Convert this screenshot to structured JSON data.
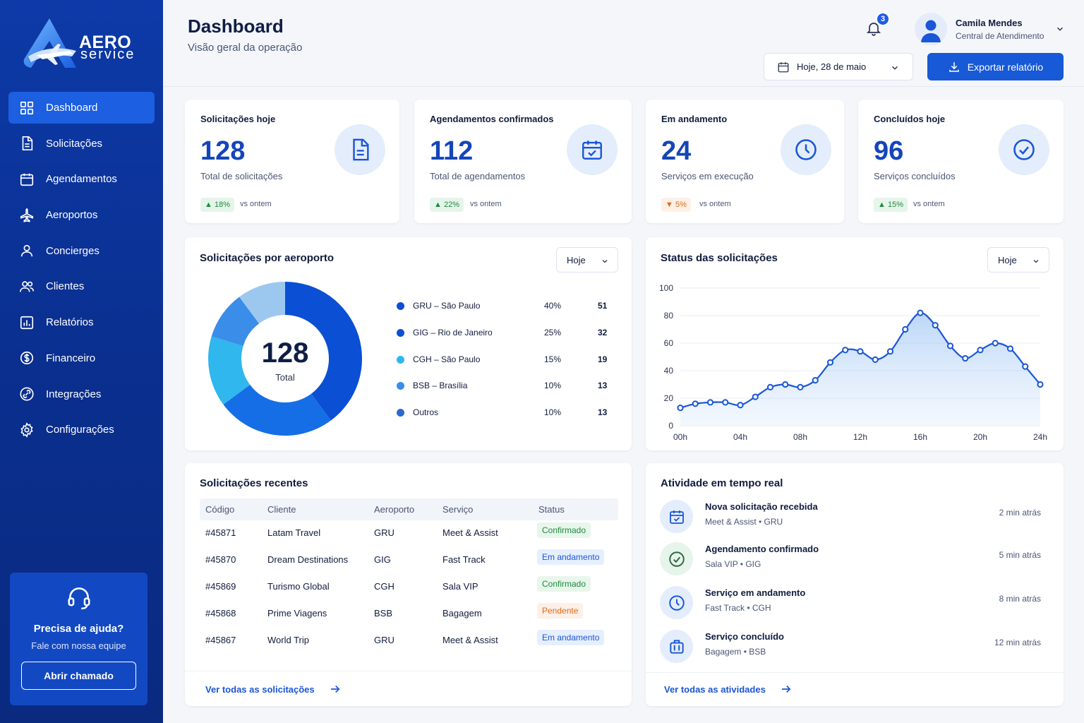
{
  "brand": {
    "name_line1": "AERO",
    "name_line2": "service"
  },
  "sidebar": {
    "items": [
      {
        "label": "Dashboard",
        "icon": "grid-icon",
        "active": true
      },
      {
        "label": "Solicitações",
        "icon": "document-icon"
      },
      {
        "label": "Agendamentos",
        "icon": "calendar-icon"
      },
      {
        "label": "Aeroportos",
        "icon": "airplane-icon"
      },
      {
        "label": "Concierges",
        "icon": "user-icon"
      },
      {
        "label": "Clientes",
        "icon": "users-icon"
      },
      {
        "label": "Relatórios",
        "icon": "report-icon"
      },
      {
        "label": "Financeiro",
        "icon": "dollar-icon"
      },
      {
        "label": "Integrações",
        "icon": "link-icon"
      },
      {
        "label": "Configurações",
        "icon": "gear-icon"
      }
    ],
    "help": {
      "title": "Precisa de ajuda?",
      "subtitle": "Fale com nossa equipe",
      "button": "Abrir chamado"
    }
  },
  "header": {
    "title": "Dashboard",
    "subtitle": "Visão geral da operação",
    "notifications": "3",
    "user": {
      "name": "Camila Mendes",
      "role": "Central de Atendimento"
    },
    "date_filter": "Hoje, 28 de maio",
    "export_label": "Exportar relatório"
  },
  "stats": [
    {
      "label": "Solicitações hoje",
      "value": "128",
      "desc": "Total de solicitações",
      "trend": "18%",
      "trend_dir": "up",
      "vs": "vs ontem",
      "icon": "document-icon"
    },
    {
      "label": "Agendamentos confirmados",
      "value": "112",
      "desc": "Total de agendamentos",
      "trend": "22%",
      "trend_dir": "up",
      "vs": "vs ontem",
      "icon": "calendar-check-icon"
    },
    {
      "label": "Em andamento",
      "value": "24",
      "desc": "Serviços em execução",
      "trend": "5%",
      "trend_dir": "down",
      "vs": "vs ontem",
      "icon": "clock-icon"
    },
    {
      "label": "Concluídos hoje",
      "value": "96",
      "desc": "Serviços concluídos",
      "trend": "15%",
      "trend_dir": "up",
      "vs": "vs ontem",
      "icon": "check-circle-icon"
    }
  ],
  "airports_card": {
    "title": "Solicitações por aeroporto",
    "filter": "Hoje",
    "total_value": "128",
    "total_label": "Total"
  },
  "status_card": {
    "title": "Status das solicitações",
    "filter": "Hoje"
  },
  "recent": {
    "title": "Solicitações recentes",
    "columns": [
      "Código",
      "Cliente",
      "Aeroporto",
      "Serviço",
      "Status"
    ],
    "rows": [
      {
        "code": "#45871",
        "client": "Latam Travel",
        "airport": "GRU",
        "service": "Meet & Assist",
        "status": "Confirmado",
        "status_type": "confirmado"
      },
      {
        "code": "#45870",
        "client": "Dream Destinations",
        "airport": "GIG",
        "service": "Fast Track",
        "status": "Em andamento",
        "status_type": "andamento"
      },
      {
        "code": "#45869",
        "client": "Turismo Global",
        "airport": "CGH",
        "service": "Sala VIP",
        "status": "Confirmado",
        "status_type": "confirmado"
      },
      {
        "code": "#45868",
        "client": "Prime Viagens",
        "airport": "BSB",
        "service": "Bagagem",
        "status": "Pendente",
        "status_type": "pendente"
      },
      {
        "code": "#45867",
        "client": "World Trip",
        "airport": "GRU",
        "service": "Meet & Assist",
        "status": "Em andamento",
        "status_type": "andamento"
      }
    ],
    "link": "Ver todas as solicitações"
  },
  "activity": {
    "title": "Atividade em tempo real",
    "items": [
      {
        "title": "Nova solicitação recebida",
        "meta": "Meet & Assist  •  GRU",
        "time": "2 min atrás",
        "icon": "calendar-check-icon",
        "tone": "blue"
      },
      {
        "title": "Agendamento confirmado",
        "meta": "Sala VIP  •  GIG",
        "time": "5 min atrás",
        "icon": "check-circle-icon",
        "tone": "green"
      },
      {
        "title": "Serviço em andamento",
        "meta": "Fast Track  •  CGH",
        "time": "8 min atrás",
        "icon": "clock-icon",
        "tone": "blue"
      },
      {
        "title": "Serviço concluído",
        "meta": "Bagagem  •  BSB",
        "time": "12 min atrás",
        "icon": "luggage-icon",
        "tone": "blue"
      }
    ],
    "link": "Ver todas as atividades"
  },
  "chart_data": [
    {
      "type": "pie",
      "title": "Solicitações por aeroporto",
      "categories": [
        "GRU – São Paulo",
        "GIG – Rio de Janeiro",
        "CGH – São Paulo",
        "BSB – Brasília",
        "Outros"
      ],
      "percents": [
        "40%",
        "25%",
        "15%",
        "10%",
        "10%"
      ],
      "values": [
        51,
        32,
        19,
        13,
        13
      ],
      "colors": [
        "#0a4fd4",
        "#166ee6",
        "#2fb7ee",
        "#3a8de8",
        "#9cc8f0"
      ],
      "legend_colors": [
        "#0a4fd4",
        "#0a4fd4",
        "#2fb7ee",
        "#3a8de8",
        "#2a6ad0"
      ]
    },
    {
      "type": "area",
      "title": "Status das solicitações",
      "x": [
        0,
        1,
        2,
        3,
        4,
        5,
        6,
        7,
        8,
        9,
        10,
        11,
        12,
        13,
        14,
        15,
        16,
        17,
        18,
        19,
        20,
        21,
        22,
        23,
        24
      ],
      "x_tick_labels": [
        "00h",
        "04h",
        "08h",
        "12h",
        "16h",
        "20h",
        "24h"
      ],
      "x_tick_values": [
        0,
        4,
        8,
        12,
        16,
        20,
        24
      ],
      "values": [
        13,
        16,
        17,
        17,
        15,
        21,
        28,
        30,
        28,
        33,
        46,
        55,
        54,
        48,
        54,
        70,
        82,
        73,
        58,
        49,
        55,
        60,
        56,
        43,
        30
      ],
      "ylim": [
        0,
        100
      ],
      "y_ticks": [
        0,
        20,
        40,
        60,
        80,
        100
      ],
      "grid": true,
      "color": "#1a56d6"
    }
  ]
}
